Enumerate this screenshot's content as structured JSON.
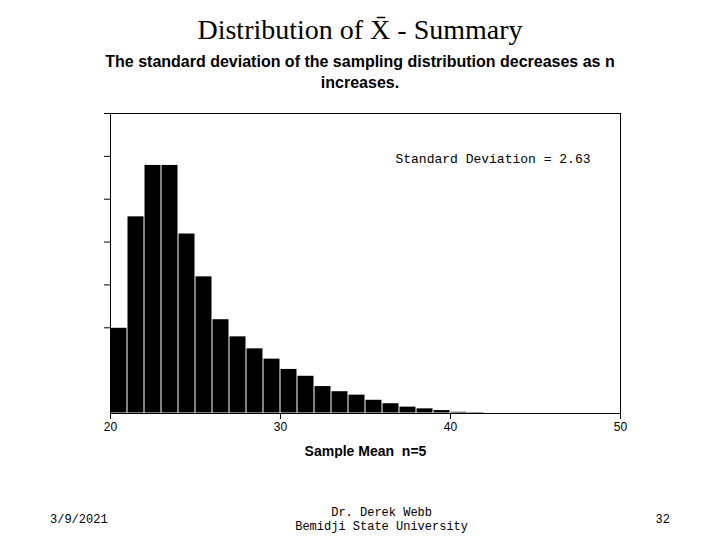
{
  "chart_data": {
    "type": "histogram",
    "title": "Distribution of X̄ - Summary",
    "subtitle": "The standard deviation of the sampling distribution decreases as n increases.",
    "xlabel": "Sample Mean  n=5",
    "bins": [
      20,
      21,
      22,
      23,
      24,
      25,
      26,
      27,
      28,
      29,
      30,
      31,
      32,
      33,
      34,
      35,
      36,
      37,
      38,
      39,
      40,
      41,
      42,
      43,
      44,
      45
    ],
    "values": [
      0.05,
      0.115,
      0.145,
      0.145,
      0.105,
      0.08,
      0.055,
      0.045,
      0.038,
      0.032,
      0.026,
      0.022,
      0.016,
      0.013,
      0.011,
      0.008,
      0.006,
      0.004,
      0.003,
      0.002,
      0.001,
      0.0008,
      0.0005,
      0.0003,
      0.0001
    ],
    "xlim": [
      20,
      50
    ],
    "xticks": [
      20,
      30,
      40,
      50
    ],
    "ylim": [
      0,
      0.175
    ],
    "yticks": [
      0.05,
      0.075,
      0.1,
      0.125,
      0.15,
      0.175
    ],
    "tick_labels": "x",
    "annotation": "Standard Deviation = 2.63",
    "footer": [
      "3/9/2021",
      "Dr. Derek Webb",
      "Bemidji State University",
      "32"
    ]
  }
}
